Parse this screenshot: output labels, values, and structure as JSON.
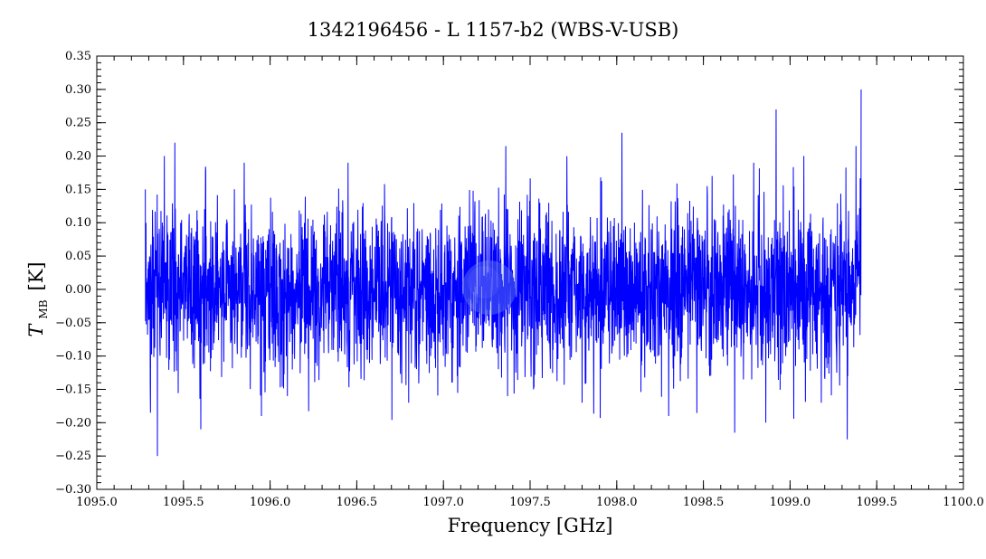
{
  "chart_data": {
    "type": "line",
    "title": "1342196456 - L 1157-b2 (WBS-V-USB)",
    "xlabel": "Frequency [GHz]",
    "ylabel": {
      "main": "T",
      "sub": "MB",
      "unit": "[K]"
    },
    "xlim": [
      1095.0,
      1100.0
    ],
    "ylim": [
      -0.3,
      0.35
    ],
    "xticks": [
      1095.0,
      1095.5,
      1096.0,
      1096.5,
      1097.0,
      1097.5,
      1098.0,
      1098.5,
      1099.0,
      1099.5,
      1100.0
    ],
    "xtick_labels": [
      "1095.0",
      "1095.5",
      "1096.0",
      "1096.5",
      "1097.0",
      "1097.5",
      "1098.0",
      "1098.5",
      "1099.0",
      "1099.5",
      "1100.0"
    ],
    "yticks": [
      -0.3,
      -0.25,
      -0.2,
      -0.15,
      -0.1,
      -0.05,
      0.0,
      0.05,
      0.1,
      0.15,
      0.2,
      0.25,
      0.3,
      0.35
    ],
    "ytick_labels": [
      "−0.30",
      "−0.25",
      "−0.20",
      "−0.15",
      "−0.10",
      "−0.05",
      "0.00",
      "0.05",
      "0.10",
      "0.15",
      "0.20",
      "0.25",
      "0.30",
      "0.35"
    ],
    "grid": false,
    "legend": "none",
    "series": [
      {
        "color": "#0000ff",
        "x_range": [
          1095.28,
          1099.41
        ],
        "noise_rms": 0.06,
        "x": [
          1095.28,
          1095.31,
          1095.35,
          1095.45,
          1095.6,
          1095.85,
          1095.95,
          1096.1,
          1096.45,
          1096.8,
          1097.08,
          1097.36,
          1097.52,
          1097.8,
          1098.03,
          1098.3,
          1098.55,
          1098.68,
          1098.79,
          1098.86,
          1098.92,
          1099.08,
          1099.18,
          1099.33,
          1099.38,
          1099.41
        ],
        "y": [
          0.15,
          -0.185,
          -0.25,
          0.22,
          -0.21,
          0.19,
          -0.19,
          -0.16,
          0.19,
          -0.17,
          -0.13,
          0.215,
          -0.15,
          -0.17,
          0.235,
          -0.19,
          0.17,
          -0.215,
          0.19,
          -0.2,
          0.27,
          0.2,
          -0.17,
          -0.225,
          0.215,
          0.3
        ]
      }
    ]
  }
}
